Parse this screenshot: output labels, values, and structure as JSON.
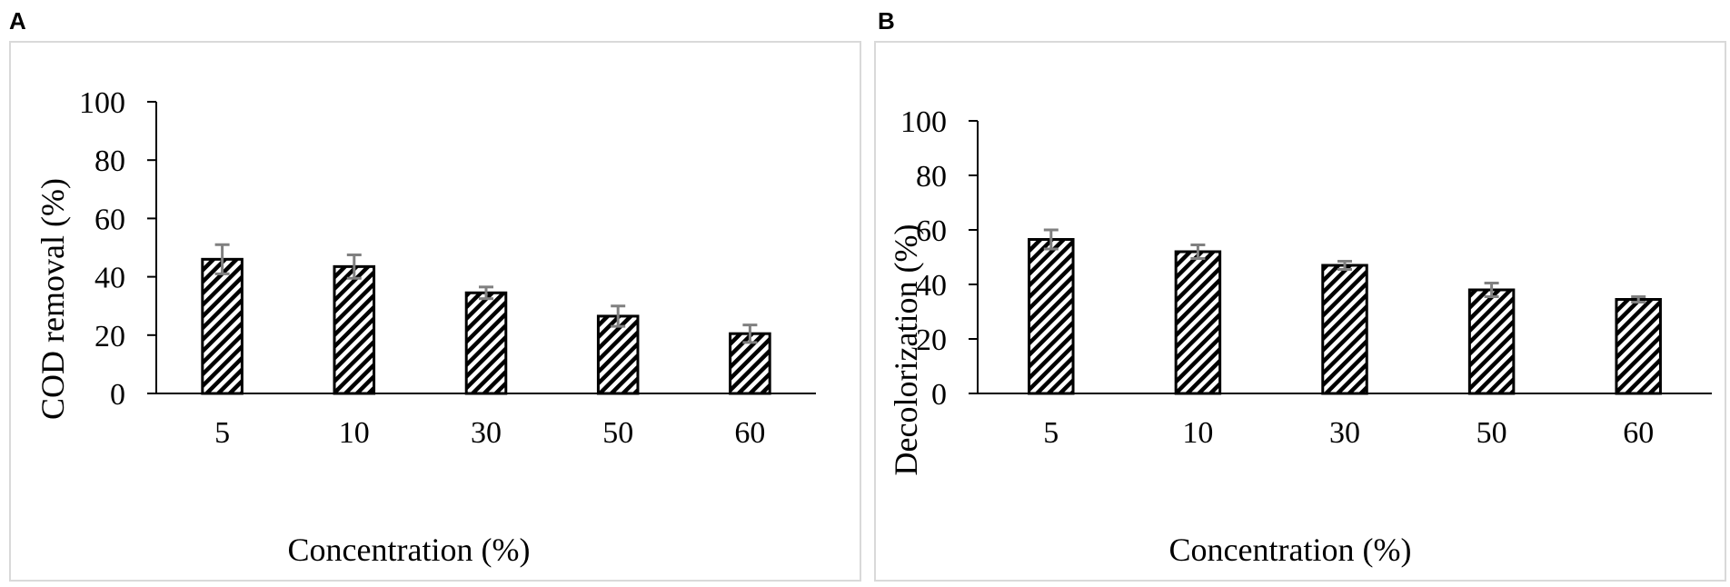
{
  "panels": [
    {
      "letter": "A"
    },
    {
      "letter": "B"
    }
  ],
  "chart_data": [
    {
      "type": "bar",
      "panel": "A",
      "categories": [
        "5",
        "10",
        "30",
        "50",
        "60"
      ],
      "values": [
        46,
        43.5,
        34.5,
        26.5,
        20.5
      ],
      "errors": [
        5,
        4,
        2,
        3.5,
        3
      ],
      "ylabel": "COD removal (%)",
      "xlabel": "Concentration (%)",
      "ylim": [
        0,
        100
      ],
      "yticks": [
        0,
        20,
        40,
        60,
        80,
        100
      ],
      "grid": false,
      "legend": "none",
      "bar_fill": "diagonal-hatch",
      "bar_color": "#000000",
      "error_color": "#808080"
    },
    {
      "type": "bar",
      "panel": "B",
      "categories": [
        "5",
        "10",
        "30",
        "50",
        "60"
      ],
      "values": [
        56.5,
        52,
        47,
        38,
        34.5
      ],
      "errors": [
        3.5,
        2.5,
        1.5,
        2.5,
        1
      ],
      "ylabel": "Decolorization  (%)",
      "xlabel": "Concentration (%)",
      "ylim": [
        0,
        100
      ],
      "yticks": [
        0,
        20,
        40,
        60,
        80,
        100
      ],
      "grid": false,
      "legend": "none",
      "bar_fill": "diagonal-hatch",
      "bar_color": "#000000",
      "error_color": "#808080"
    }
  ]
}
